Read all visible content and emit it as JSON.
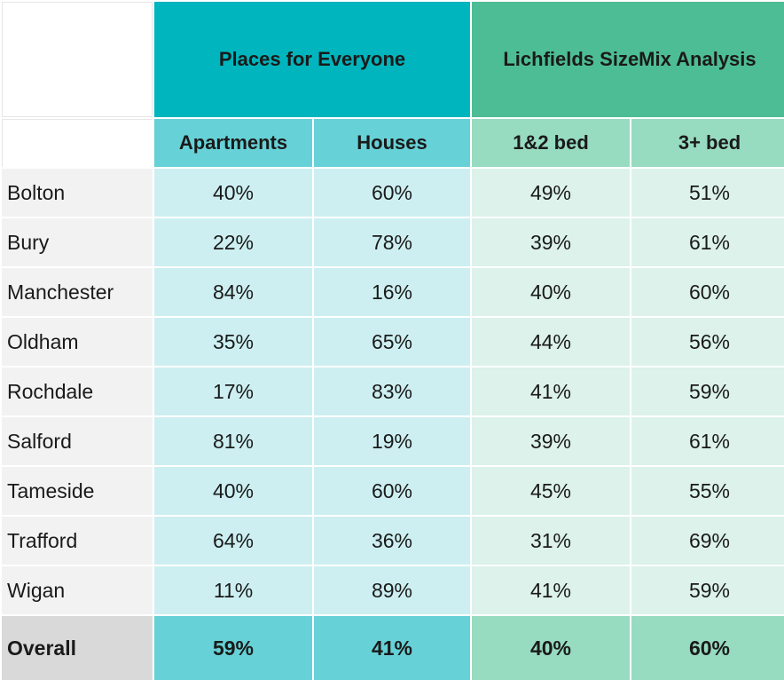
{
  "headers": {
    "group_pfe": "Places for Everyone",
    "group_lichfields": "Lichfields SizeMix Analysis",
    "apartments": "Apartments",
    "houses": "Houses",
    "bed_1_2": "1&2 bed",
    "bed_3_plus": "3+ bed"
  },
  "rows": [
    {
      "area": "Bolton",
      "apartments": "40%",
      "houses": "60%",
      "bed_1_2": "49%",
      "bed_3_plus": "51%"
    },
    {
      "area": "Bury",
      "apartments": "22%",
      "houses": "78%",
      "bed_1_2": "39%",
      "bed_3_plus": "61%"
    },
    {
      "area": "Manchester",
      "apartments": "84%",
      "houses": "16%",
      "bed_1_2": "40%",
      "bed_3_plus": "60%"
    },
    {
      "area": "Oldham",
      "apartments": "35%",
      "houses": "65%",
      "bed_1_2": "44%",
      "bed_3_plus": "56%"
    },
    {
      "area": "Rochdale",
      "apartments": "17%",
      "houses": "83%",
      "bed_1_2": "41%",
      "bed_3_plus": "59%"
    },
    {
      "area": "Salford",
      "apartments": "81%",
      "houses": "19%",
      "bed_1_2": "39%",
      "bed_3_plus": "61%"
    },
    {
      "area": "Tameside",
      "apartments": "40%",
      "houses": "60%",
      "bed_1_2": "45%",
      "bed_3_plus": "55%"
    },
    {
      "area": "Trafford",
      "apartments": "64%",
      "houses": "36%",
      "bed_1_2": "31%",
      "bed_3_plus": "69%"
    },
    {
      "area": "Wigan",
      "apartments": "11%",
      "houses": "89%",
      "bed_1_2": "41%",
      "bed_3_plus": "59%"
    }
  ],
  "overall": {
    "area": "Overall",
    "apartments": "59%",
    "houses": "41%",
    "bed_1_2": "40%",
    "bed_3_plus": "60%"
  },
  "colors": {
    "pfe_group": "#00b5bd",
    "pfe_sub": "#66d1d6",
    "pfe_value": "#cdeff1",
    "lichfields_group": "#4dbd95",
    "lichfields_sub": "#97dbc1",
    "lichfields_value": "#dcf2ea",
    "row_label": "#f2f2f2",
    "overall_label": "#d9d9d9"
  }
}
